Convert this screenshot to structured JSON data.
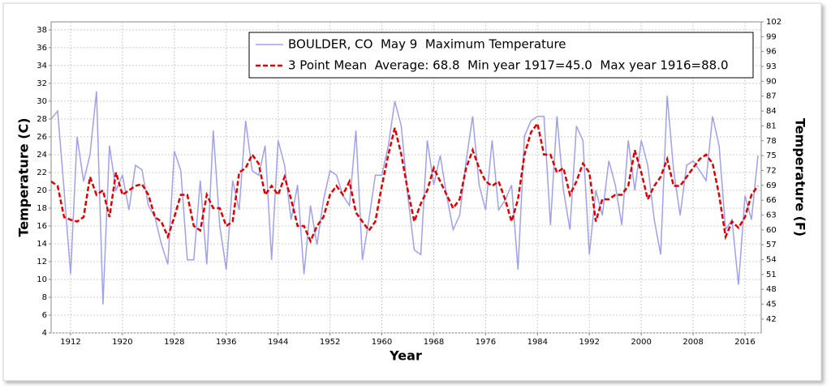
{
  "chart_data": {
    "type": "line",
    "x_label": "Year",
    "y_label": "Temperature (C)",
    "y2_label": "Temperature (F)",
    "x": [
      1909,
      1910,
      1911,
      1912,
      1913,
      1914,
      1915,
      1916,
      1917,
      1918,
      1919,
      1920,
      1921,
      1922,
      1923,
      1924,
      1925,
      1926,
      1927,
      1928,
      1929,
      1930,
      1931,
      1932,
      1933,
      1934,
      1935,
      1936,
      1937,
      1938,
      1939,
      1940,
      1941,
      1942,
      1943,
      1944,
      1945,
      1946,
      1947,
      1948,
      1949,
      1950,
      1951,
      1952,
      1953,
      1954,
      1955,
      1956,
      1957,
      1958,
      1959,
      1960,
      1961,
      1962,
      1963,
      1964,
      1965,
      1966,
      1967,
      1968,
      1969,
      1970,
      1971,
      1972,
      1973,
      1974,
      1975,
      1976,
      1977,
      1978,
      1979,
      1980,
      1981,
      1982,
      1983,
      1984,
      1985,
      1986,
      1987,
      1988,
      1989,
      1990,
      1991,
      1992,
      1993,
      1994,
      1995,
      1996,
      1997,
      1998,
      1999,
      2000,
      2001,
      2002,
      2003,
      2004,
      2005,
      2006,
      2007,
      2008,
      2009,
      2010,
      2011,
      2012,
      2013,
      2014,
      2015,
      2016,
      2017,
      2018
    ],
    "series": [
      {
        "name": "BOULDER, CO  May 9  Maximum Temperature",
        "color": "#a0a0f0",
        "style": "solid",
        "values": [
          28,
          28.9,
          20,
          10.6,
          26,
          21,
          24,
          31.1,
          7.2,
          25,
          20,
          21.7,
          17.8,
          22.8,
          22.3,
          18.3,
          17,
          14,
          11.7,
          24.4,
          22.2,
          12.2,
          12.2,
          21.1,
          11.7,
          26.7,
          16,
          11.1,
          21.1,
          17.8,
          27.8,
          22.2,
          21.7,
          25,
          12.2,
          25.6,
          22.8,
          16.7,
          20.6,
          10.6,
          18.3,
          13.9,
          18.9,
          22.2,
          21.7,
          19.4,
          18.3,
          26.7,
          12.2,
          16.7,
          21.7,
          21.7,
          25,
          30,
          27.2,
          19.4,
          13.3,
          12.8,
          25.6,
          20.6,
          23.9,
          19.4,
          15.6,
          17.2,
          23.3,
          28.3,
          20.6,
          17.8,
          25.6,
          17.8,
          18.9,
          20.6,
          11.1,
          26.1,
          27.8,
          28.3,
          28.3,
          16.1,
          28.3,
          20,
          15.6,
          27.2,
          25.6,
          12.8,
          20,
          17.2,
          23.3,
          20.6,
          16.1,
          25.6,
          20,
          25.6,
          22.8,
          16.7,
          12.8,
          30.6,
          22.2,
          17.2,
          22.8,
          23.3,
          22.2,
          21.1,
          28.3,
          25,
          15.6,
          16.7,
          9.4,
          19.4,
          16.7,
          23.9
        ]
      },
      {
        "name": "3 Point Mean  Average: 68.8  Min year 1917=45.0  Max year 1916=88.0",
        "color": "#e00000",
        "style": "dashed",
        "values": [
          21,
          20.5,
          17,
          16.7,
          16.5,
          17,
          21.5,
          19.5,
          20,
          17,
          22,
          19.5,
          20,
          20.5,
          20.7,
          19.5,
          17,
          16.5,
          14.8,
          17,
          19.5,
          19.5,
          16,
          15.5,
          19.5,
          18,
          18,
          16,
          16.5,
          22,
          22.5,
          24,
          23,
          19.5,
          20.5,
          19.5,
          21.5,
          19,
          16,
          16,
          14.3,
          16,
          17,
          19.5,
          20.5,
          19.5,
          21,
          17.5,
          16.5,
          15.5,
          16.5,
          20.5,
          24,
          27,
          24,
          20,
          16.5,
          18.5,
          20,
          22.5,
          21,
          19.5,
          18,
          19,
          22.5,
          24.5,
          22.5,
          21,
          20.5,
          21,
          19,
          16.5,
          19,
          24,
          26.5,
          27.5,
          24,
          24,
          22,
          22.5,
          19.5,
          21,
          23,
          22,
          16.5,
          19,
          19,
          19.5,
          19.5,
          20.5,
          24.5,
          22,
          19,
          20.5,
          21.5,
          23.5,
          20.5,
          20.5,
          21.5,
          22.5,
          23.5,
          24,
          23,
          19.5,
          14.8,
          16.5,
          15.8,
          17,
          19.5,
          20.5
        ]
      }
    ],
    "xlim": [
      1909,
      2018.5
    ],
    "xticks": [
      1912,
      1920,
      1928,
      1936,
      1944,
      1952,
      1960,
      1968,
      1976,
      1984,
      1992,
      2000,
      2008,
      2016
    ],
    "ylim": [
      4,
      38.9
    ],
    "yticks": [
      4,
      6,
      8,
      10,
      12,
      14,
      16,
      18,
      20,
      22,
      24,
      26,
      28,
      30,
      32,
      34,
      36,
      38
    ],
    "y2lim": [
      39.2,
      102
    ],
    "y2ticks": [
      42,
      45,
      48,
      51,
      54,
      57,
      60,
      63,
      66,
      69,
      72,
      75,
      78,
      81,
      84,
      87,
      90,
      93,
      96,
      99,
      102
    ],
    "grid": true,
    "legend": "top-right"
  }
}
